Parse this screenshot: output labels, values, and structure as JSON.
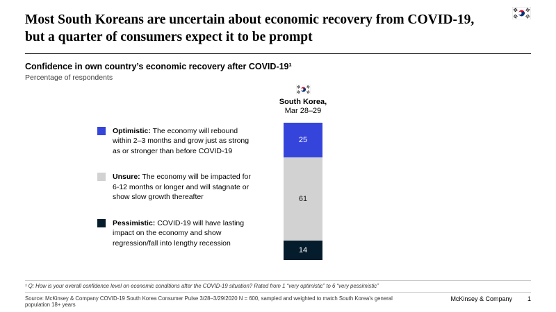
{
  "slide": {
    "title": "Most South Koreans are uncertain about economic recovery from COVID-19, but a quarter of consumers expect it to be prompt",
    "subtitle": "Confidence in own country’s economic recovery after COVID-19¹",
    "unit_label": "Percentage of respondents"
  },
  "icons": {
    "header_flag": "south-korea-flag-icon",
    "column_flag": "south-korea-flag-icon"
  },
  "legend": {
    "items": [
      {
        "label": "Optimistic:",
        "text": "The economy will rebound within 2–3 months and grow just as strong as or stronger than before COVID-19",
        "color": "#3545dc"
      },
      {
        "label": "Unsure:",
        "text": "The economy will be impacted for 6-12 months or longer and will stagnate or show slow growth thereafter",
        "color": "#d2d2d2"
      },
      {
        "label": "Pessimistic:",
        "text": "COVID-19 will have lasting impact on the economy and show regression/fall into lengthy recession",
        "color": "#051c2c"
      }
    ]
  },
  "chart_data": {
    "type": "bar",
    "subtype": "stacked_percentage",
    "title": "Confidence in own country’s economic recovery after COVID-19¹",
    "unit": "Percentage of respondents",
    "categories": [
      "South Korea, Mar 28–29"
    ],
    "series": [
      {
        "name": "Optimistic",
        "values": [
          25
        ],
        "color": "#3545dc",
        "label_color": "#ffffff"
      },
      {
        "name": "Unsure",
        "values": [
          61
        ],
        "color": "#d2d2d2",
        "label_color": "#1a1a1a"
      },
      {
        "name": "Pessimistic",
        "values": [
          14
        ],
        "color": "#051c2c",
        "label_color": "#ffffff"
      }
    ],
    "total": 100,
    "column_header": {
      "title": "South Korea,",
      "subtitle": "Mar 28–29"
    },
    "legend_position": "left",
    "grid": false
  },
  "footer": {
    "footnote": "¹ Q: How is your overall confidence level on economic conditions after the COVID-19 situation? Rated from 1 “very optimistic” to 6 “very pessimistic”",
    "source": "Source: McKinsey & Company COVID-19 South Korea Consumer Pulse 3/28–3/29/2020 N = 600, sampled and weighted to match South Korea’s general population 18+ years",
    "brand": "McKinsey & Company",
    "page_number": "1"
  }
}
